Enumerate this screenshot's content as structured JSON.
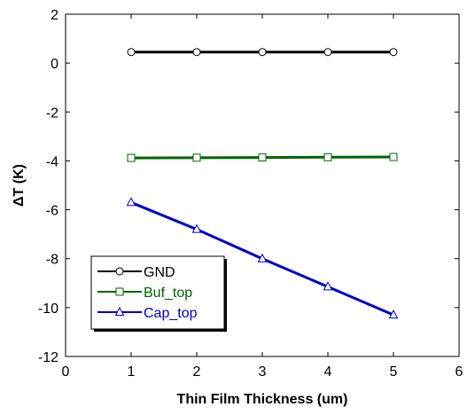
{
  "chart_data": {
    "type": "line",
    "xlabel": "Thin Film Thickness (um)",
    "ylabel": "ΔT (K)",
    "xlim": [
      0,
      6
    ],
    "ylim": [
      -12,
      2
    ],
    "xticks": [
      "0",
      "1",
      "2",
      "3",
      "4",
      "5",
      "6"
    ],
    "yticks": [
      "-12",
      "-10",
      "-8",
      "-6",
      "-4",
      "-2",
      "0",
      "2"
    ],
    "grid": false,
    "legend_placement": "bottom-left",
    "x": [
      1,
      2,
      3,
      4,
      5
    ],
    "series": [
      {
        "name": "GND",
        "values": [
          0.45,
          0.45,
          0.45,
          0.45,
          0.45
        ],
        "color": "#000000",
        "marker": "circle"
      },
      {
        "name": "Buf_top",
        "values": [
          -3.88,
          -3.87,
          -3.86,
          -3.85,
          -3.84
        ],
        "color": "#006400",
        "marker": "square"
      },
      {
        "name": "Cap_top",
        "values": [
          -5.7,
          -6.8,
          -8.0,
          -9.15,
          -10.3
        ],
        "color": "#0000C8",
        "marker": "triangle"
      }
    ]
  }
}
